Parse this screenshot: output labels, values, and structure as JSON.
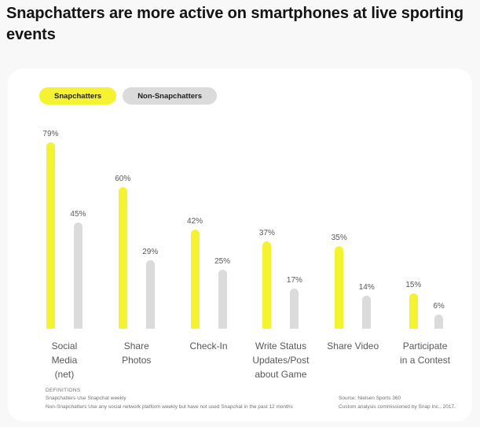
{
  "title": "Snapchatters are more active on smartphones at live sporting events",
  "legend": [
    {
      "label": "Snapchatters",
      "color": "#F5F232"
    },
    {
      "label": "Non-Snapchatters",
      "color": "#DBDBDB"
    }
  ],
  "chart_data": {
    "type": "bar",
    "title": "Snapchatters are more active on smartphones at live sporting events",
    "categories": [
      "Social\nMedia\n(net)",
      "Share\nPhotos",
      "Check-In",
      "Write Status\nUpdates/Post\nabout Game",
      "Share Video",
      "Participate\nin a Contest"
    ],
    "series": [
      {
        "name": "Snapchatters",
        "color": "#F5F232",
        "values": [
          79,
          60,
          42,
          37,
          35,
          15
        ]
      },
      {
        "name": "Non-Snapchatters",
        "color": "#DBDBDB",
        "values": [
          45,
          29,
          25,
          17,
          14,
          6
        ]
      }
    ],
    "value_suffix": "%",
    "ylim": [
      0,
      100
    ],
    "grid": false,
    "legend_position": "top-left",
    "xlabel": "",
    "ylabel": ""
  },
  "footnotes": {
    "definitions_heading": "DEFINITIONS",
    "definitions": [
      "Snapchatters  Use Snapchat weekly",
      "Non-Snapchatters Use any social network platform weekly but have not used Snapchat in the past 12 months"
    ],
    "source": [
      "Source: Nielsen Sports 360",
      "Custom analysis commissioned by Snap Inc., 2017."
    ]
  },
  "colors": {
    "accent_yellow": "#F5F232",
    "bar_gray": "#DBDBDB",
    "text_gray": "#58595B",
    "page_bg": "#F8F8F8",
    "card_bg": "#FFFFFF"
  }
}
